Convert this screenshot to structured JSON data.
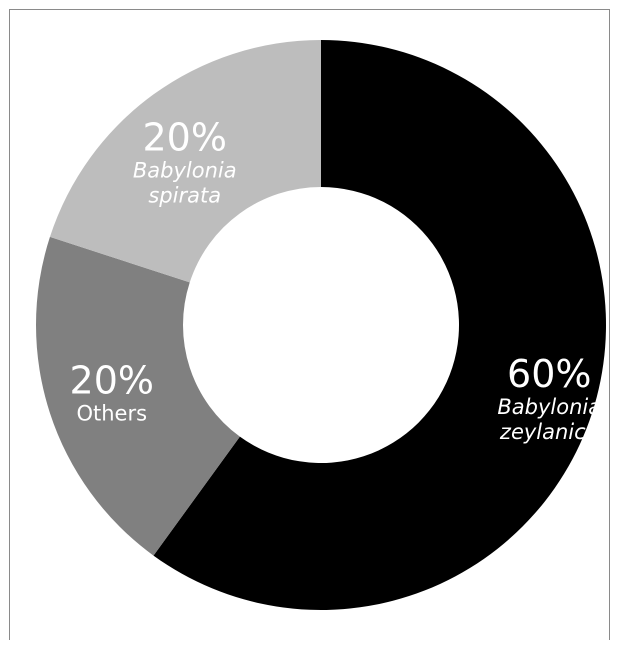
{
  "chart_data": {
    "type": "pie",
    "donut": true,
    "title": "",
    "legend": "none",
    "colors": [
      "#000000",
      "#808080",
      "#bdbdbd"
    ],
    "slices": [
      {
        "label_lines": [
          "Babylonia",
          "zeylanica"
        ],
        "value": 60,
        "display": "60%",
        "italic": true,
        "color": "#000000"
      },
      {
        "label_lines": [
          "Others"
        ],
        "value": 20,
        "display": "20%",
        "italic": false,
        "color": "#808080"
      },
      {
        "label_lines": [
          "Babylonia",
          "spirata"
        ],
        "value": 20,
        "display": "20%",
        "italic": true,
        "color": "#bdbdbd"
      }
    ]
  }
}
